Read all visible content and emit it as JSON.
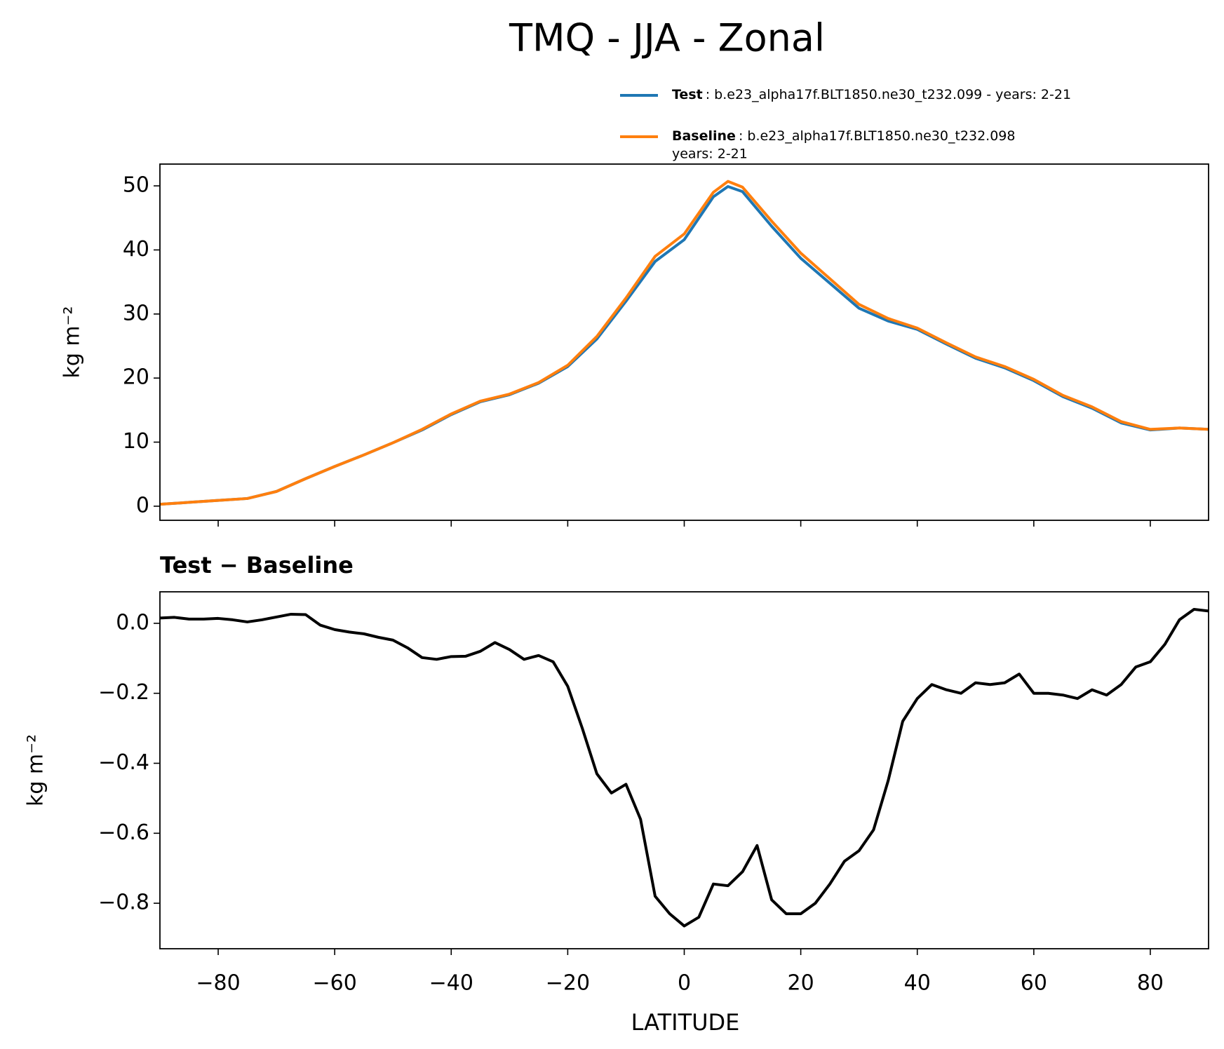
{
  "chart_data": [
    {
      "type": "line",
      "title": "TMQ - JJA - Zonal",
      "ylabel": "kg m⁻²",
      "x": [
        -90,
        -85,
        -80,
        -75,
        -70,
        -65,
        -60,
        -55,
        -50,
        -45,
        -40,
        -35,
        -30,
        -25,
        -20,
        -15,
        -10,
        -5,
        0,
        5,
        7.5,
        10,
        15,
        20,
        25,
        30,
        35,
        40,
        45,
        50,
        55,
        60,
        65,
        70,
        75,
        80,
        85,
        90
      ],
      "series": [
        {
          "name": "Test",
          "label": [
            ": b.e23_alpha17f.BLT1850.ne30_t232.099 - years: 2-21"
          ],
          "color": "#1f77b4",
          "values": [
            0.3,
            0.6,
            0.9,
            1.2,
            2.3,
            4.3,
            6.2,
            8.0,
            9.9,
            11.9,
            14.3,
            16.3,
            17.4,
            19.2,
            21.8,
            26.1,
            32.0,
            38.2,
            41.6,
            48.3,
            49.9,
            49.1,
            43.7,
            38.7,
            34.8,
            30.9,
            28.9,
            27.6,
            25.3,
            23.1,
            21.6,
            19.6,
            17.1,
            15.3,
            13.0,
            11.9,
            12.2,
            12.0
          ]
        },
        {
          "name": "Baseline",
          "label": [
            ": b.e23_alpha17f.BLT1850.ne30_t232.098",
            "years: 2-21"
          ],
          "color": "#ff7f0e",
          "values": [
            0.3,
            0.6,
            0.9,
            1.2,
            2.3,
            4.3,
            6.2,
            8.0,
            9.9,
            12.0,
            14.4,
            16.4,
            17.5,
            19.3,
            22.0,
            26.5,
            32.5,
            39.0,
            42.5,
            49.0,
            50.7,
            49.8,
            44.5,
            39.5,
            35.5,
            31.5,
            29.3,
            27.8,
            25.5,
            23.3,
            21.8,
            19.8,
            17.3,
            15.5,
            13.2,
            12.0,
            12.2,
            12.0
          ]
        }
      ],
      "xlim": [
        -90,
        90
      ],
      "ylim": [
        -2.2,
        53.4
      ],
      "yticks": [
        0,
        10,
        20,
        30,
        40,
        50
      ]
    },
    {
      "type": "line",
      "title": "Test − Baseline",
      "ylabel": "kg m⁻²",
      "xlabel": "LATITUDE",
      "x": [
        -90,
        -87.5,
        -85,
        -82.5,
        -80,
        -77.5,
        -75,
        -72.5,
        -70,
        -67.5,
        -65,
        -62.5,
        -60,
        -57.5,
        -55,
        -52.5,
        -50,
        -47.5,
        -45,
        -42.5,
        -40,
        -37.5,
        -35,
        -32.5,
        -30,
        -27.5,
        -25,
        -22.5,
        -20,
        -17.5,
        -15,
        -12.5,
        -10,
        -7.5,
        -5,
        -2.5,
        0,
        2.5,
        5,
        7.5,
        10,
        12.5,
        15,
        17.5,
        20,
        22.5,
        25,
        27.5,
        30,
        32.5,
        35,
        37.5,
        40,
        42.5,
        45,
        47.5,
        50,
        52.5,
        55,
        57.5,
        60,
        62.5,
        65,
        67.5,
        70,
        72.5,
        75,
        77.5,
        80,
        82.5,
        85,
        87.5,
        90
      ],
      "series": [
        {
          "color": "#000000",
          "values": [
            0.015,
            0.017,
            0.012,
            0.012,
            0.014,
            0.01,
            0.004,
            0.01,
            0.018,
            0.026,
            0.025,
            -0.005,
            -0.018,
            -0.025,
            -0.03,
            -0.04,
            -0.048,
            -0.07,
            -0.098,
            -0.103,
            -0.095,
            -0.094,
            -0.08,
            -0.055,
            -0.075,
            -0.103,
            -0.092,
            -0.11,
            -0.18,
            -0.3,
            -0.43,
            -0.485,
            -0.46,
            -0.56,
            -0.78,
            -0.83,
            -0.865,
            -0.84,
            -0.745,
            -0.75,
            -0.71,
            -0.635,
            -0.79,
            -0.83,
            -0.83,
            -0.8,
            -0.745,
            -0.68,
            -0.65,
            -0.59,
            -0.45,
            -0.28,
            -0.215,
            -0.175,
            -0.19,
            -0.2,
            -0.17,
            -0.175,
            -0.17,
            -0.145,
            -0.2,
            -0.2,
            -0.205,
            -0.215,
            -0.19,
            -0.205,
            -0.175,
            -0.125,
            -0.11,
            -0.06,
            0.01,
            0.04,
            0.035
          ]
        }
      ],
      "xlim": [
        -90,
        90
      ],
      "ylim": [
        -0.93,
        0.09
      ],
      "xticks": [
        {
          "value": -80,
          "label": "−80"
        },
        {
          "value": -60,
          "label": "−60"
        },
        {
          "value": -40,
          "label": "−40"
        },
        {
          "value": -20,
          "label": "−20"
        },
        0,
        20,
        40,
        60,
        80
      ],
      "yticks": [
        {
          "value": 0,
          "label": "0.0"
        },
        {
          "value": -0.2,
          "label": "−0.2"
        },
        {
          "value": -0.4,
          "label": "−0.4"
        },
        {
          "value": -0.6,
          "label": "−0.6"
        },
        {
          "value": -0.8,
          "label": "−0.8"
        }
      ]
    }
  ]
}
